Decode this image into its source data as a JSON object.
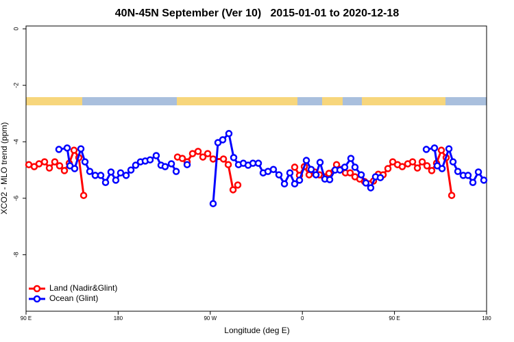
{
  "chart_data": {
    "type": "line",
    "title": "40N-45N September (Ver 10)   2015-01-01 to 2020-12-18",
    "x_label": "Longitude (deg E)",
    "y_label": "XCO2 - MLO trend (ppm)",
    "xlim": [
      90,
      540
    ],
    "xticks": [
      {
        "value": 90,
        "label": "90 E"
      },
      180,
      {
        "value": 270,
        "label": "90 W"
      },
      {
        "value": 360,
        "label": "0"
      },
      {
        "value": 450,
        "label": "90 E"
      },
      {
        "value": 540,
        "label": "180"
      }
    ],
    "ylim": [
      -10.0,
      0.1
    ],
    "yticks": [
      -8,
      -6,
      -4,
      -2,
      0
    ],
    "legend": "bottom-left",
    "series": [
      {
        "name": "Land (Nadir&Glint)",
        "color": "#ff0000",
        "x": [
          92.7,
          98.0,
          102.7,
          108.1,
          112.8,
          118.1,
          122.8,
          127.5,
          132.2,
          136.9,
          141.6,
          146.3,
          null,
          238.0,
          242.7,
          247.4,
          252.7,
          258.1,
          262.8,
          267.5,
          272.8,
          282.9,
          287.6,
          292.3,
          296.9,
          null,
          352.5,
          357.2,
          361.9,
          366.6,
          372.0,
          376.7,
          381.3,
          386.0,
          393.4,
          397.4,
          402.1,
          406.7,
          411.4,
          416.1,
          420.8,
          425.5,
          429.5,
          434.2,
          438.9,
          443.6,
          448.3,
          453.0,
          457.6,
          463.0,
          467.7,
          472.4,
          477.1,
          481.8,
          486.4,
          491.1,
          495.8,
          500.5,
          505.9
        ],
        "values": [
          -4.81,
          -4.88,
          -4.78,
          -4.71,
          -4.93,
          -4.71,
          -4.85,
          -5.02,
          -4.76,
          -4.3,
          -4.56,
          -5.9,
          null,
          -4.54,
          -4.59,
          -4.71,
          -4.42,
          -4.34,
          -4.54,
          -4.42,
          -4.61,
          -4.61,
          -4.81,
          -5.7,
          -5.53,
          null,
          -4.9,
          -5.19,
          -4.88,
          -5.17,
          -5.07,
          -5.17,
          -5.24,
          -5.12,
          -4.81,
          -4.98,
          -5.1,
          -5.1,
          -5.24,
          -5.32,
          -5.41,
          -5.49,
          -5.39,
          -5.15,
          -5.17,
          -4.95,
          -4.71,
          -4.81,
          -4.88,
          -4.78,
          -4.71,
          -4.93,
          -4.71,
          -4.85,
          -5.02,
          -4.76,
          -4.3,
          -4.56,
          -5.9
        ]
      },
      {
        "name": "Ocean (Glint)",
        "color": "#0000ff",
        "x": [
          122.1,
          130.2,
          132.9,
          137.5,
          143.6,
          147.6,
          152.3,
          157.6,
          163.0,
          167.7,
          173.0,
          177.7,
          182.4,
          187.8,
          192.5,
          197.1,
          201.8,
          206.5,
          211.2,
          217.2,
          221.9,
          225.9,
          232.0,
          236.7,
          null,
          247.4,
          null,
          272.8,
          277.5,
          282.2,
          288.2,
          292.9,
          297.6,
          302.3,
          307.0,
          311.7,
          317.0,
          321.7,
          326.4,
          331.7,
          337.1,
          342.5,
          347.8,
          352.5,
          357.2,
          363.9,
          368.6,
          373.3,
          377.3,
          382.0,
          386.7,
          392.0,
          396.7,
          401.4,
          407.4,
          411.4,
          417.5,
          422.1,
          426.8,
          431.5,
          436.2,
          null,
          481.1,
          489.1,
          491.8,
          496.5,
          503.2,
          507.2,
          511.9,
          517.2,
          521.9,
          526.6,
          532.0,
          537.3
        ],
        "values": [
          -4.27,
          -4.22,
          -4.85,
          -4.95,
          -4.25,
          -4.71,
          -5.05,
          -5.19,
          -5.19,
          -5.44,
          -5.07,
          -5.36,
          -5.1,
          -5.19,
          -5.0,
          -4.83,
          -4.71,
          -4.68,
          -4.64,
          -4.49,
          -4.83,
          -4.88,
          -4.78,
          -5.05,
          null,
          -4.81,
          null,
          -6.19,
          -4.03,
          -3.93,
          -3.71,
          -4.56,
          -4.81,
          -4.76,
          -4.83,
          -4.76,
          -4.76,
          -5.1,
          -5.05,
          -4.98,
          -5.17,
          -5.49,
          -5.1,
          -5.49,
          -5.36,
          -4.66,
          -4.98,
          -5.17,
          -4.73,
          -5.32,
          -5.34,
          -5.0,
          -5.0,
          -4.9,
          -4.59,
          -4.9,
          -5.17,
          -5.46,
          -5.63,
          -5.24,
          -5.27,
          null,
          -4.27,
          -4.22,
          -4.85,
          -4.95,
          -4.25,
          -4.71,
          -5.05,
          -5.19,
          -5.19,
          -5.44,
          -5.07,
          -5.36
        ]
      }
    ]
  }
}
